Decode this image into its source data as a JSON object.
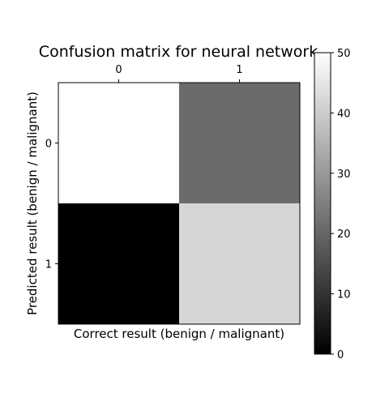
{
  "chart_data": {
    "type": "heatmap",
    "title": "Confusion matrix for neural network",
    "xlabel": "Correct result (benign / malignant)",
    "ylabel": "Predicted result (benign / malignant)",
    "x_categories": [
      "0",
      "1"
    ],
    "y_categories": [
      "0",
      "1"
    ],
    "values": [
      [
        50,
        21
      ],
      [
        0,
        42
      ]
    ],
    "colormap": "gray",
    "value_range": [
      0,
      50
    ],
    "colorbar_ticks": [
      "0",
      "10",
      "20",
      "30",
      "40",
      "50"
    ],
    "grid": false
  }
}
